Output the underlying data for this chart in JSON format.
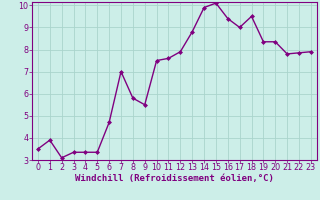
{
  "x": [
    0,
    1,
    2,
    3,
    4,
    5,
    6,
    7,
    8,
    9,
    10,
    11,
    12,
    13,
    14,
    15,
    16,
    17,
    18,
    19,
    20,
    21,
    22,
    23
  ],
  "y": [
    3.5,
    3.9,
    3.1,
    3.35,
    3.35,
    3.35,
    4.7,
    7.0,
    5.8,
    5.5,
    7.5,
    7.6,
    7.9,
    8.8,
    9.9,
    10.1,
    9.4,
    9.0,
    9.5,
    8.35,
    8.35,
    7.8,
    7.85,
    7.9
  ],
  "line_color": "#800080",
  "marker": "D",
  "marker_size": 2.0,
  "linewidth": 1.0,
  "bg_color": "#cceee8",
  "grid_color": "#aad4cc",
  "xlabel": "Windchill (Refroidissement éolien,°C)",
  "xlabel_color": "#800080",
  "xlabel_fontsize": 6.5,
  "ylim": [
    3,
    10
  ],
  "xlim": [
    -0.5,
    23.5
  ],
  "yticks": [
    3,
    4,
    5,
    6,
    7,
    8,
    9,
    10
  ],
  "xticks": [
    0,
    1,
    2,
    3,
    4,
    5,
    6,
    7,
    8,
    9,
    10,
    11,
    12,
    13,
    14,
    15,
    16,
    17,
    18,
    19,
    20,
    21,
    22,
    23
  ],
  "tick_fontsize": 5.8,
  "tick_color": "#800080",
  "spine_color": "#800080"
}
